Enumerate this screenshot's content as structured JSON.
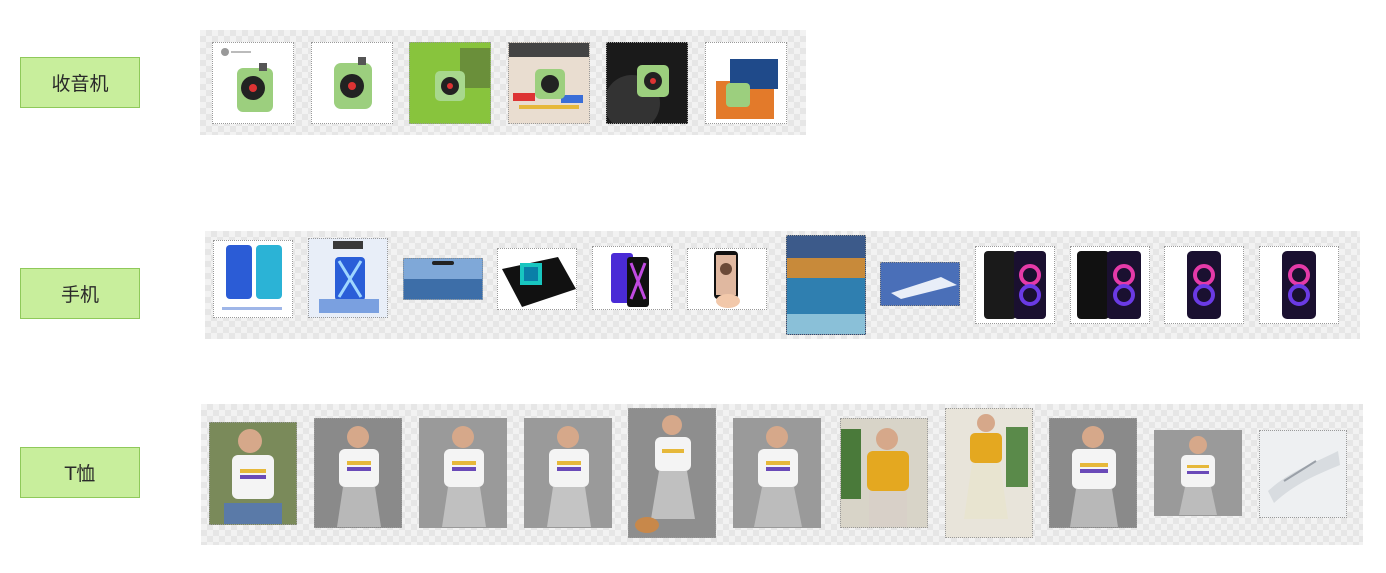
{
  "categories": [
    {
      "label": "收音机",
      "images": [
        "radio-1",
        "radio-2",
        "radio-3",
        "radio-4",
        "radio-5",
        "radio-6"
      ]
    },
    {
      "label": "手机",
      "images": [
        "phone-1",
        "phone-2",
        "phone-3",
        "phone-4",
        "phone-5",
        "phone-6",
        "phone-7",
        "phone-8",
        "phone-9",
        "phone-10",
        "phone-11",
        "phone-12"
      ]
    },
    {
      "label": "T恤",
      "images": [
        "tshirt-1",
        "tshirt-2",
        "tshirt-3",
        "tshirt-4",
        "tshirt-5",
        "tshirt-6",
        "tshirt-7",
        "tshirt-8",
        "tshirt-9",
        "tshirt-10",
        "tshirt-11"
      ]
    }
  ]
}
